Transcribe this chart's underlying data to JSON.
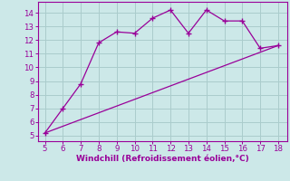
{
  "curve_x": [
    5,
    6,
    7,
    8,
    9,
    10,
    11,
    12,
    13,
    14,
    15,
    16,
    17,
    18
  ],
  "curve_y": [
    5.2,
    7.0,
    8.8,
    11.8,
    12.6,
    12.5,
    13.6,
    14.2,
    12.5,
    14.2,
    13.4,
    13.4,
    11.4,
    11.6
  ],
  "line_x": [
    5,
    18
  ],
  "line_y": [
    5.2,
    11.6
  ],
  "color": "#990099",
  "bg_color": "#cce8e8",
  "grid_color": "#aacccc",
  "xlim": [
    4.6,
    18.5
  ],
  "ylim": [
    4.6,
    14.8
  ],
  "xticks": [
    5,
    6,
    7,
    8,
    9,
    10,
    11,
    12,
    13,
    14,
    15,
    16,
    17,
    18
  ],
  "yticks": [
    5,
    6,
    7,
    8,
    9,
    10,
    11,
    12,
    13,
    14
  ],
  "xlabel": "Windchill (Refroidissement éolien,°C)",
  "xlabel_color": "#990099",
  "tick_color": "#990099",
  "label_fontsize": 6.5,
  "tick_fontsize": 6.2
}
